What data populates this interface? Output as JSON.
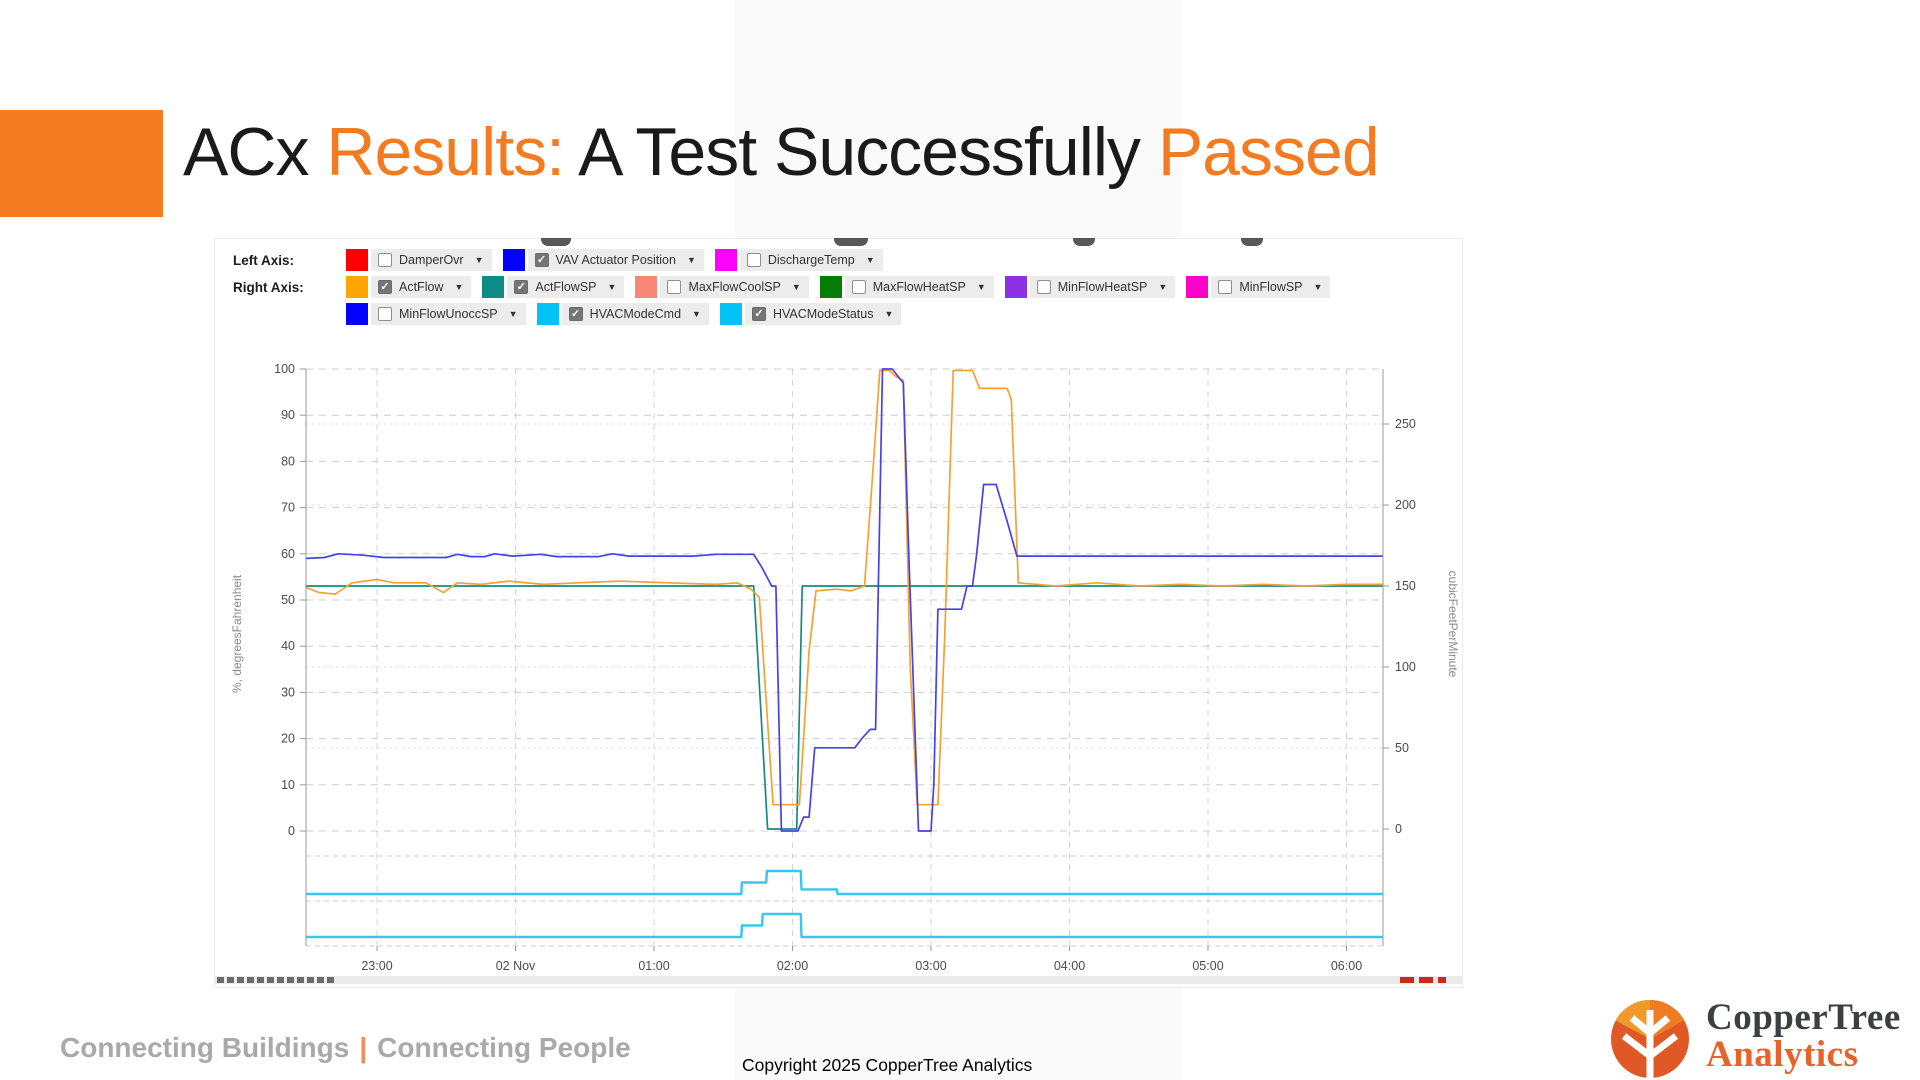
{
  "slide": {
    "title": {
      "seg_acx": "ACx ",
      "seg_results": "Results: ",
      "seg_middle": "A Test Successfully ",
      "seg_passed": "Passed",
      "accent_color": "#f47b20",
      "text_color": "#1a1a1a"
    },
    "footer_left": {
      "part1": "Connecting Buildings",
      "separator": "|",
      "part2": "Connecting People"
    },
    "footer_center": "Copyright 2025 CopperTree Analytics",
    "logo": {
      "line1": "CopperTree",
      "line2": "Analytics"
    }
  },
  "chart_ui": {
    "rows": [
      {
        "label": "Left Axis:",
        "items": [
          {
            "name": "DamperOvr",
            "color": "#fe0000",
            "checked": false
          },
          {
            "name": "VAV Actuator Position",
            "color": "#0202fe",
            "checked": true
          },
          {
            "name": "DischargeTemp",
            "color": "#fb02fb",
            "checked": false
          }
        ]
      },
      {
        "label": "Right Axis:",
        "items": [
          {
            "name": "ActFlow",
            "color": "#ffa501",
            "checked": true
          },
          {
            "name": "ActFlowSP",
            "color": "#0d8b84",
            "checked": true
          },
          {
            "name": "MaxFlowCoolSP",
            "color": "#f78878",
            "checked": false
          },
          {
            "name": "MaxFlowHeatSP",
            "color": "#037d03",
            "checked": false
          },
          {
            "name": "MinFlowHeatSP",
            "color": "#8e30e6",
            "checked": false
          },
          {
            "name": "MinFlowSP",
            "color": "#fe02c8",
            "checked": false
          }
        ]
      },
      {
        "label": "",
        "items": [
          {
            "name": "MinFlowUnoccSP",
            "color": "#0202fe",
            "checked": false
          },
          {
            "name": "HVACModeCmd",
            "color": "#02c2f6",
            "checked": true
          },
          {
            "name": "HVACModeStatus",
            "color": "#02c2f6",
            "checked": true
          }
        ]
      }
    ]
  },
  "chart_data": {
    "type": "line",
    "x_axis": {
      "labels": [
        "23:00",
        "02 Nov",
        "01:00",
        "02:00",
        "03:00",
        "04:00",
        "05:00",
        "06:00"
      ],
      "label_times": [
        1,
        2,
        3,
        4,
        5,
        6,
        7,
        8
      ],
      "note": "time in hours since 22:00 on 01 Nov",
      "range_hours": [
        0.49,
        8.26
      ]
    },
    "left_axis": {
      "title": "%, degreesFahrenheit",
      "min": 0,
      "max": 100,
      "ticks": [
        0,
        10,
        20,
        30,
        40,
        50,
        60,
        70,
        80,
        90,
        100
      ]
    },
    "right_axis": {
      "title": "cubicFeetPerMinute",
      "min": 0,
      "max": 283,
      "ticks": [
        0,
        50,
        100,
        150,
        200,
        250
      ]
    },
    "series": [
      {
        "name": "ActFlowSP",
        "axis": "right",
        "color": "#18897f",
        "width": 1.7,
        "points": [
          [
            0.49,
            150
          ],
          [
            3.72,
            150
          ],
          [
            3.82,
            0
          ],
          [
            4.03,
            0
          ],
          [
            4.07,
            150
          ],
          [
            8.26,
            150
          ]
        ]
      },
      {
        "name": "ActFlow",
        "axis": "right",
        "color": "#f4a233",
        "width": 1.7,
        "points": [
          [
            0.49,
            149
          ],
          [
            0.58,
            146
          ],
          [
            0.7,
            145
          ],
          [
            0.82,
            152
          ],
          [
            1.0,
            154
          ],
          [
            1.12,
            152
          ],
          [
            1.35,
            152
          ],
          [
            1.48,
            146
          ],
          [
            1.58,
            152
          ],
          [
            1.75,
            151
          ],
          [
            1.95,
            153
          ],
          [
            2.2,
            151
          ],
          [
            2.45,
            152
          ],
          [
            2.75,
            153
          ],
          [
            3.1,
            152
          ],
          [
            3.45,
            151
          ],
          [
            3.6,
            152
          ],
          [
            3.7,
            148
          ],
          [
            3.76,
            143
          ],
          [
            3.86,
            15
          ],
          [
            4.05,
            15
          ],
          [
            4.12,
            110
          ],
          [
            4.17,
            147
          ],
          [
            4.32,
            148
          ],
          [
            4.42,
            147
          ],
          [
            4.52,
            150
          ],
          [
            4.58,
            220
          ],
          [
            4.63,
            283
          ],
          [
            4.7,
            283
          ],
          [
            4.75,
            279
          ],
          [
            4.8,
            277
          ],
          [
            4.85,
            100
          ],
          [
            4.9,
            15
          ],
          [
            5.05,
            15
          ],
          [
            5.1,
            120
          ],
          [
            5.16,
            283
          ],
          [
            5.3,
            283
          ],
          [
            5.35,
            272
          ],
          [
            5.55,
            272
          ],
          [
            5.58,
            265
          ],
          [
            5.63,
            152
          ],
          [
            5.9,
            150
          ],
          [
            6.2,
            152
          ],
          [
            6.5,
            150
          ],
          [
            6.8,
            151
          ],
          [
            7.1,
            150
          ],
          [
            7.4,
            151
          ],
          [
            7.7,
            150
          ],
          [
            8.0,
            151
          ],
          [
            8.26,
            151
          ]
        ]
      },
      {
        "name": "VAV Actuator Position",
        "axis": "left",
        "color": "#4343e8",
        "width": 1.7,
        "points": [
          [
            0.49,
            59
          ],
          [
            0.62,
            59.2
          ],
          [
            0.72,
            60
          ],
          [
            0.9,
            59.7
          ],
          [
            1.05,
            59.2
          ],
          [
            1.5,
            59.2
          ],
          [
            1.58,
            59.9
          ],
          [
            1.68,
            59.4
          ],
          [
            1.78,
            59.4
          ],
          [
            1.85,
            60
          ],
          [
            1.98,
            59.5
          ],
          [
            2.18,
            59.9
          ],
          [
            2.3,
            59.4
          ],
          [
            2.6,
            59.4
          ],
          [
            2.7,
            60
          ],
          [
            2.82,
            59.5
          ],
          [
            3.28,
            59.5
          ],
          [
            3.45,
            59.9
          ],
          [
            3.72,
            59.9
          ],
          [
            3.78,
            57
          ],
          [
            3.85,
            53
          ],
          [
            3.88,
            53
          ],
          [
            3.92,
            0
          ],
          [
            4.04,
            0
          ],
          [
            4.08,
            3
          ],
          [
            4.12,
            3
          ],
          [
            4.16,
            18
          ],
          [
            4.45,
            18
          ],
          [
            4.5,
            20
          ],
          [
            4.56,
            22
          ],
          [
            4.6,
            22
          ],
          [
            4.65,
            100
          ],
          [
            4.72,
            100
          ],
          [
            4.8,
            97
          ],
          [
            4.84,
            60
          ],
          [
            4.91,
            0
          ],
          [
            5.0,
            0
          ],
          [
            5.02,
            10
          ],
          [
            5.05,
            48
          ],
          [
            5.22,
            48
          ],
          [
            5.26,
            53
          ],
          [
            5.3,
            53
          ],
          [
            5.33,
            60
          ],
          [
            5.38,
            75
          ],
          [
            5.47,
            75
          ],
          [
            5.55,
            67
          ],
          [
            5.62,
            59.5
          ],
          [
            8.26,
            59.5
          ]
        ]
      },
      {
        "name": "HVACModeCmd",
        "axis": "lane1",
        "color": "#38c5f0",
        "width": 2.4,
        "points": [
          [
            0.49,
            0
          ],
          [
            3.63,
            0
          ],
          [
            3.635,
            1
          ],
          [
            3.81,
            1
          ],
          [
            3.815,
            2
          ],
          [
            4.06,
            2
          ],
          [
            4.065,
            0.4
          ],
          [
            4.32,
            0.4
          ],
          [
            4.325,
            0
          ],
          [
            8.26,
            0
          ]
        ]
      },
      {
        "name": "HVACModeStatus",
        "axis": "lane2",
        "color": "#38c5f0",
        "width": 2.4,
        "points": [
          [
            0.49,
            0
          ],
          [
            3.63,
            0
          ],
          [
            3.635,
            1
          ],
          [
            3.78,
            1
          ],
          [
            3.785,
            2
          ],
          [
            4.06,
            2
          ],
          [
            4.065,
            0
          ],
          [
            8.26,
            0
          ]
        ]
      }
    ]
  }
}
